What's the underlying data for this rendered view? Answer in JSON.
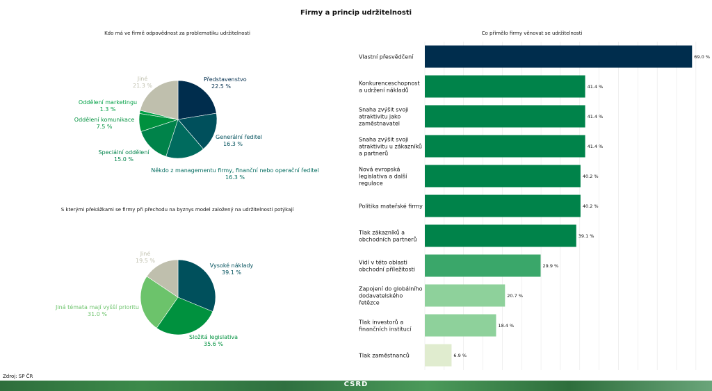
{
  "title": "Firmy a princip udržitelnosti",
  "source": "Zdroj: SP ČR",
  "footer_logo": "CSRD",
  "colors": {
    "navy": "#002d4d",
    "dark_teal": "#00505c",
    "teal": "#006b5e",
    "green1": "#00834a",
    "green2": "#00913e",
    "green3": "#3aa76a",
    "light_green": "#6cc36b",
    "pale_green": "#8ed19b",
    "very_pale": "#e0eccf",
    "gray": "#bfbfad"
  },
  "chart_data": [
    {
      "type": "pie",
      "title": "Kdo má ve firmě odpovědnost za problematiku udržitelnosti",
      "slices": [
        {
          "label": "Představenstvo",
          "value": 22.5,
          "value_label": "22.5 %",
          "color": "#002d4d"
        },
        {
          "label": "Generální ředitel",
          "value": 16.3,
          "value_label": "16.3 %",
          "color": "#00505c"
        },
        {
          "label": "Někdo z managementu firmy, finanční nebo operační ředitel",
          "value": 16.3,
          "value_label": "16.3 %",
          "color": "#006b5e"
        },
        {
          "label": "Speciální oddělení",
          "value": 15.0,
          "value_label": "15.0 %",
          "color": "#00834a"
        },
        {
          "label": "Oddělení komunikace",
          "value": 7.5,
          "value_label": "7.5 %",
          "color": "#00913e"
        },
        {
          "label": "Oddělení marketingu",
          "value": 1.3,
          "value_label": "1.3 %",
          "color": "#00a045"
        },
        {
          "label": "Jiné",
          "value": 21.3,
          "value_label": "21.3 %",
          "color": "#bfbfad"
        }
      ]
    },
    {
      "type": "pie",
      "title": "S kterými překážkami se firmy při přechodu na byznys model založený na udržitelnosti potýkají",
      "slices": [
        {
          "label": "Vysoké náklady",
          "value": 39.1,
          "value_label": "39.1 %",
          "color": "#00505c"
        },
        {
          "label": "Složitá legislativa",
          "value": 35.6,
          "value_label": "35.6 %",
          "color": "#00913e"
        },
        {
          "label": "Jiná témata mají vyšší prioritu",
          "value": 31.0,
          "value_label": "31.0 %",
          "color": "#6cc36b"
        },
        {
          "label": "Jiné",
          "value": 19.5,
          "value_label": "19.5 %",
          "color": "#bfbfad"
        }
      ]
    },
    {
      "type": "bar",
      "orientation": "horizontal",
      "title": "Co přimělo firmy věnovat se udržitelnosti",
      "xlim": [
        0,
        72
      ],
      "grid": true,
      "bars": [
        {
          "label": [
            "Vlastní přesvědčení"
          ],
          "value": 69.0,
          "value_label": "69.0 %",
          "color": "#002d4d"
        },
        {
          "label": [
            "Konkurenceschopnost",
            "a udržení nákladů"
          ],
          "value": 41.4,
          "value_label": "41.4 %",
          "color": "#00834a"
        },
        {
          "label": [
            "Snaha zvýšit svoji",
            "atraktivitu jako",
            "zaměstnavatel"
          ],
          "value": 41.4,
          "value_label": "41.4 %",
          "color": "#00834a"
        },
        {
          "label": [
            "Snaha zvýšit svoji",
            "atraktivitu u zákazníků",
            "a partnerů"
          ],
          "value": 41.4,
          "value_label": "41.4 %",
          "color": "#00834a"
        },
        {
          "label": [
            "Nová evropská",
            "legislativa a další",
            "regulace"
          ],
          "value": 40.2,
          "value_label": "40.2 %",
          "color": "#00834a"
        },
        {
          "label": [
            "Politika mateřské firmy"
          ],
          "value": 40.2,
          "value_label": "40.2 %",
          "color": "#00834a"
        },
        {
          "label": [
            "Tlak zákazníků a",
            "obchodních partnerů"
          ],
          "value": 39.1,
          "value_label": "39.1 %",
          "color": "#00834a"
        },
        {
          "label": [
            "Vidí v této oblasti",
            "obchodní příležitosti"
          ],
          "value": 29.9,
          "value_label": "29.9 %",
          "color": "#3aa76a"
        },
        {
          "label": [
            "Zapojení do globálního",
            "dodavatelského",
            "řetězce"
          ],
          "value": 20.7,
          "value_label": "20.7 %",
          "color": "#8ed19b"
        },
        {
          "label": [
            "Tlak investorů a",
            "finančních institucí"
          ],
          "value": 18.4,
          "value_label": "18.4 %",
          "color": "#8ed19b"
        },
        {
          "label": [
            "Tlak zaměstnanců"
          ],
          "value": 6.9,
          "value_label": "6.9 %",
          "color": "#e0eccf"
        }
      ]
    }
  ]
}
